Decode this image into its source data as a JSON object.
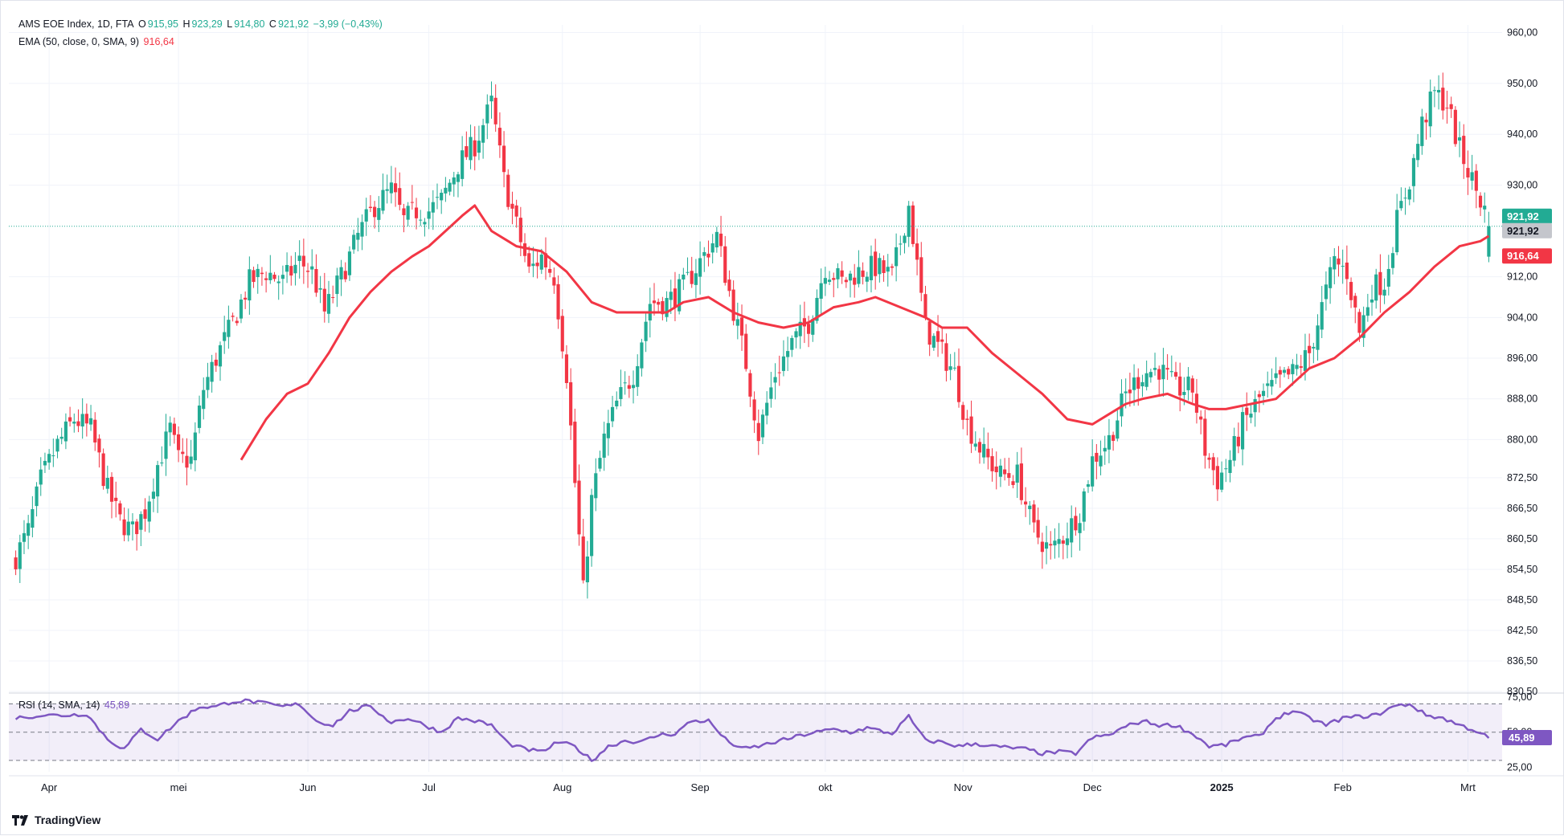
{
  "legend": {
    "symbol_line": "AMS EOE Index, 1D, FTA",
    "open_label": "O",
    "open": "915,95",
    "high_label": "H",
    "high": "923,29",
    "low_label": "L",
    "low": "914,80",
    "close_label": "C",
    "close": "921,92",
    "change": "−3,99 (−0,43%)",
    "ema_label": "EMA (50, close, 0, SMA, 9)",
    "ema_value": "916,64",
    "rsi_label": "RSI (14, SMA, 14)",
    "rsi_value": "45,89"
  },
  "price_badges": {
    "last": "921,92",
    "last_color": "#22ab94",
    "prev": "921,92",
    "ema": "916,64",
    "ema_color": "#f23645",
    "rsi": "45,89",
    "rsi_color": "#7e57c2"
  },
  "brand": {
    "name": "TradingView",
    "logo_icon": "tradingview-logo-icon"
  },
  "colors": {
    "up": "#22ab94",
    "down": "#f23645",
    "ema": "#f23645",
    "rsi": "#7e57c2",
    "grid": "#f0f3fa"
  },
  "chart_data": [
    {
      "type": "candlestick",
      "title": "AMS EOE Index, 1D, FTA",
      "y_ticks": [
        "960,00",
        "950,00",
        "940,00",
        "930,00",
        "912,00",
        "904,00",
        "896,00",
        "888,00",
        "880,00",
        "872,50",
        "866,50",
        "860,50",
        "854,50",
        "848,50",
        "842,50",
        "836,50",
        "830,50"
      ],
      "y_tick_values": [
        960,
        950,
        940,
        930,
        912,
        904,
        896,
        888,
        880,
        872.5,
        866.5,
        860.5,
        854.5,
        848.5,
        842.5,
        836.5,
        830.5
      ],
      "x_ticks": [
        "Apr",
        "mei",
        "Jun",
        "Jul",
        "Aug",
        "Sep",
        "okt",
        "Nov",
        "Dec",
        "2025",
        "Feb",
        "Mrt"
      ],
      "x_tick_index": [
        8,
        39,
        70,
        99,
        131,
        164,
        194,
        227,
        258,
        289,
        318,
        348
      ],
      "last_price": 921.92,
      "close_anchors": [
        [
          0,
          857
        ],
        [
          3,
          862
        ],
        [
          6,
          872
        ],
        [
          10,
          879
        ],
        [
          14,
          884
        ],
        [
          18,
          882
        ],
        [
          22,
          870
        ],
        [
          25,
          864
        ],
        [
          28,
          862
        ],
        [
          31,
          866
        ],
        [
          34,
          875
        ],
        [
          37,
          882
        ],
        [
          39,
          876
        ],
        [
          42,
          876
        ],
        [
          45,
          890
        ],
        [
          48,
          896
        ],
        [
          52,
          903
        ],
        [
          56,
          911
        ],
        [
          60,
          913
        ],
        [
          64,
          911
        ],
        [
          68,
          915
        ],
        [
          71,
          913
        ],
        [
          74,
          905
        ],
        [
          78,
          912
        ],
        [
          82,
          920
        ],
        [
          86,
          926
        ],
        [
          90,
          929
        ],
        [
          93,
          923
        ],
        [
          96,
          925
        ],
        [
          99,
          925
        ],
        [
          102,
          927
        ],
        [
          106,
          934
        ],
        [
          110,
          938
        ],
        [
          114,
          946
        ],
        [
          117,
          931
        ],
        [
          120,
          922
        ],
        [
          123,
          913
        ],
        [
          126,
          916
        ],
        [
          129,
          912
        ],
        [
          132,
          893
        ],
        [
          136,
          850
        ],
        [
          138,
          868
        ],
        [
          141,
          880
        ],
        [
          144,
          887
        ],
        [
          148,
          893
        ],
        [
          152,
          907
        ],
        [
          156,
          907
        ],
        [
          160,
          910
        ],
        [
          164,
          915
        ],
        [
          168,
          920
        ],
        [
          171,
          909
        ],
        [
          175,
          895
        ],
        [
          178,
          881
        ],
        [
          182,
          893
        ],
        [
          186,
          899
        ],
        [
          190,
          903
        ],
        [
          194,
          914
        ],
        [
          198,
          911
        ],
        [
          202,
          913
        ],
        [
          206,
          914
        ],
        [
          210,
          912
        ],
        [
          214,
          926
        ],
        [
          218,
          902
        ],
        [
          222,
          897
        ],
        [
          225,
          893
        ],
        [
          228,
          883
        ],
        [
          232,
          877
        ],
        [
          236,
          873
        ],
        [
          240,
          873
        ],
        [
          244,
          862
        ],
        [
          248,
          858
        ],
        [
          252,
          862
        ],
        [
          255,
          866
        ],
        [
          258,
          876
        ],
        [
          262,
          880
        ],
        [
          266,
          889
        ],
        [
          270,
          893
        ],
        [
          274,
          894
        ],
        [
          278,
          890
        ],
        [
          282,
          890
        ],
        [
          285,
          878
        ],
        [
          288,
          872
        ],
        [
          291,
          876
        ],
        [
          294,
          883
        ],
        [
          298,
          888
        ],
        [
          302,
          891
        ],
        [
          306,
          893
        ],
        [
          310,
          897
        ],
        [
          313,
          906
        ],
        [
          316,
          915
        ],
        [
          319,
          913
        ],
        [
          322,
          901
        ],
        [
          325,
          910
        ],
        [
          328,
          911
        ],
        [
          331,
          923
        ],
        [
          334,
          931
        ],
        [
          337,
          942
        ],
        [
          340,
          948
        ],
        [
          343,
          946
        ],
        [
          346,
          937
        ],
        [
          349,
          931
        ],
        [
          352,
          925
        ],
        [
          353,
          922
        ]
      ],
      "ema_values": [
        [
          54,
          876
        ],
        [
          60,
          884
        ],
        [
          65,
          889
        ],
        [
          70,
          891
        ],
        [
          75,
          897
        ],
        [
          80,
          904
        ],
        [
          85,
          909
        ],
        [
          90,
          913
        ],
        [
          95,
          916
        ],
        [
          99,
          918
        ],
        [
          103,
          921
        ],
        [
          107,
          924
        ],
        [
          110,
          926
        ],
        [
          114,
          921
        ],
        [
          120,
          918
        ],
        [
          126,
          917
        ],
        [
          132,
          913
        ],
        [
          138,
          907
        ],
        [
          144,
          905
        ],
        [
          150,
          905
        ],
        [
          156,
          905
        ],
        [
          160,
          907
        ],
        [
          166,
          908
        ],
        [
          172,
          905
        ],
        [
          178,
          903
        ],
        [
          184,
          902
        ],
        [
          190,
          903
        ],
        [
          196,
          906
        ],
        [
          202,
          907
        ],
        [
          206,
          908
        ],
        [
          212,
          906
        ],
        [
          218,
          904
        ],
        [
          222,
          902
        ],
        [
          228,
          902
        ],
        [
          234,
          897
        ],
        [
          240,
          893
        ],
        [
          246,
          889
        ],
        [
          252,
          884
        ],
        [
          258,
          883
        ],
        [
          262,
          885
        ],
        [
          266,
          887
        ],
        [
          270,
          888
        ],
        [
          276,
          889
        ],
        [
          282,
          887
        ],
        [
          286,
          886
        ],
        [
          290,
          886
        ],
        [
          296,
          887
        ],
        [
          302,
          888
        ],
        [
          306,
          891
        ],
        [
          310,
          894
        ],
        [
          316,
          896
        ],
        [
          322,
          900
        ],
        [
          328,
          905
        ],
        [
          334,
          909
        ],
        [
          340,
          914
        ],
        [
          346,
          918
        ],
        [
          351,
          919
        ],
        [
          353,
          920
        ]
      ],
      "ema_last": 916.64,
      "ymin": 830.5,
      "ymax": 961.5
    },
    {
      "type": "line",
      "title": "RSI (14, SMA, 14)",
      "y_ticks": [
        "75,00",
        "50,00",
        "25,00"
      ],
      "y_tick_values": [
        75,
        50,
        25
      ],
      "bands": [
        70,
        50,
        30
      ],
      "rsi_anchors": [
        [
          0,
          60
        ],
        [
          6,
          62
        ],
        [
          12,
          62
        ],
        [
          17,
          63
        ],
        [
          22,
          45
        ],
        [
          26,
          38
        ],
        [
          30,
          52
        ],
        [
          34,
          45
        ],
        [
          39,
          58
        ],
        [
          44,
          68
        ],
        [
          48,
          68
        ],
        [
          52,
          72
        ],
        [
          56,
          72
        ],
        [
          60,
          70
        ],
        [
          64,
          68
        ],
        [
          68,
          70
        ],
        [
          72,
          58
        ],
        [
          76,
          55
        ],
        [
          80,
          65
        ],
        [
          84,
          68
        ],
        [
          86,
          66
        ],
        [
          90,
          57
        ],
        [
          94,
          60
        ],
        [
          98,
          55
        ],
        [
          102,
          50
        ],
        [
          106,
          60
        ],
        [
          110,
          58
        ],
        [
          114,
          55
        ],
        [
          118,
          42
        ],
        [
          122,
          38
        ],
        [
          126,
          36
        ],
        [
          130,
          43
        ],
        [
          134,
          40
        ],
        [
          138,
          30
        ],
        [
          142,
          40
        ],
        [
          146,
          44
        ],
        [
          150,
          43
        ],
        [
          154,
          48
        ],
        [
          158,
          49
        ],
        [
          162,
          58
        ],
        [
          166,
          58
        ],
        [
          170,
          45
        ],
        [
          174,
          38
        ],
        [
          178,
          40
        ],
        [
          182,
          43
        ],
        [
          186,
          46
        ],
        [
          190,
          49
        ],
        [
          196,
          52
        ],
        [
          200,
          50
        ],
        [
          204,
          53
        ],
        [
          210,
          49
        ],
        [
          214,
          61
        ],
        [
          218,
          44
        ],
        [
          222,
          43
        ],
        [
          226,
          40
        ],
        [
          230,
          42
        ],
        [
          234,
          40
        ],
        [
          238,
          39
        ],
        [
          242,
          38
        ],
        [
          246,
          35
        ],
        [
          250,
          36
        ],
        [
          254,
          35
        ],
        [
          258,
          46
        ],
        [
          262,
          48
        ],
        [
          266,
          54
        ],
        [
          270,
          58
        ],
        [
          274,
          55
        ],
        [
          278,
          55
        ],
        [
          283,
          47
        ],
        [
          286,
          40
        ],
        [
          290,
          41
        ],
        [
          294,
          46
        ],
        [
          298,
          47
        ],
        [
          302,
          60
        ],
        [
          306,
          65
        ],
        [
          310,
          60
        ],
        [
          314,
          55
        ],
        [
          318,
          60
        ],
        [
          322,
          61
        ],
        [
          326,
          62
        ],
        [
          330,
          68
        ],
        [
          334,
          70
        ],
        [
          338,
          62
        ],
        [
          342,
          60
        ],
        [
          346,
          55
        ],
        [
          350,
          51
        ],
        [
          353,
          46
        ]
      ],
      "rsi_last": 45.89,
      "ymin": 22,
      "ymax": 76
    }
  ]
}
